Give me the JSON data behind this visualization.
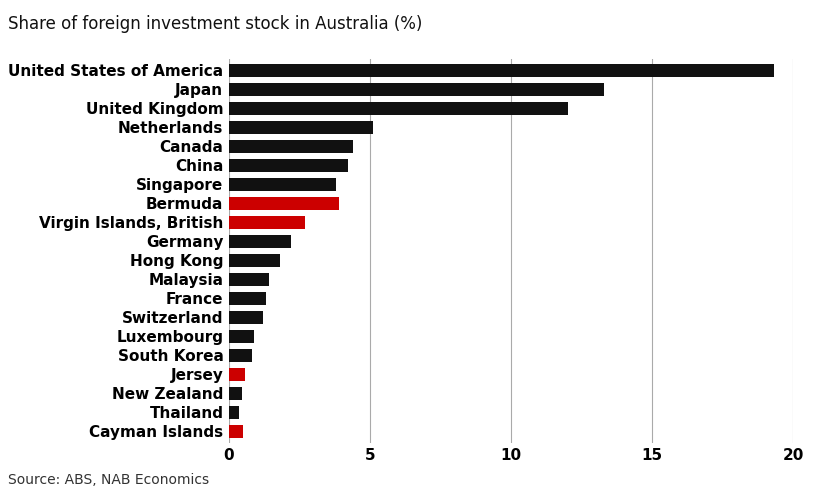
{
  "title": "Share of foreign investment stock in Australia (%)",
  "source": "Source: ABS, NAB Economics",
  "categories": [
    "United States of America",
    "Japan",
    "United Kingdom",
    "Netherlands",
    "Canada",
    "China",
    "Singapore",
    "Bermuda",
    "Virgin Islands, British",
    "Germany",
    "Hong Kong",
    "Malaysia",
    "France",
    "Switzerland",
    "Luxembourg",
    "South Korea",
    "Jersey",
    "New Zealand",
    "Thailand",
    "Cayman Islands"
  ],
  "values": [
    19.3,
    13.3,
    12.0,
    5.1,
    4.4,
    4.2,
    3.8,
    3.9,
    2.7,
    2.2,
    1.8,
    1.4,
    1.3,
    1.2,
    0.9,
    0.8,
    0.55,
    0.45,
    0.35,
    0.5
  ],
  "colors": [
    "#111111",
    "#111111",
    "#111111",
    "#111111",
    "#111111",
    "#111111",
    "#111111",
    "#cc0000",
    "#cc0000",
    "#111111",
    "#111111",
    "#111111",
    "#111111",
    "#111111",
    "#111111",
    "#111111",
    "#cc0000",
    "#111111",
    "#111111",
    "#cc0000"
  ],
  "xlim": [
    0,
    20
  ],
  "xticks": [
    0,
    5,
    10,
    15,
    20
  ],
  "background_color": "#ffffff",
  "bar_height": 0.72,
  "title_fontsize": 12,
  "label_fontsize": 11,
  "tick_fontsize": 11,
  "source_fontsize": 10,
  "grid_color": "#aaaaaa"
}
